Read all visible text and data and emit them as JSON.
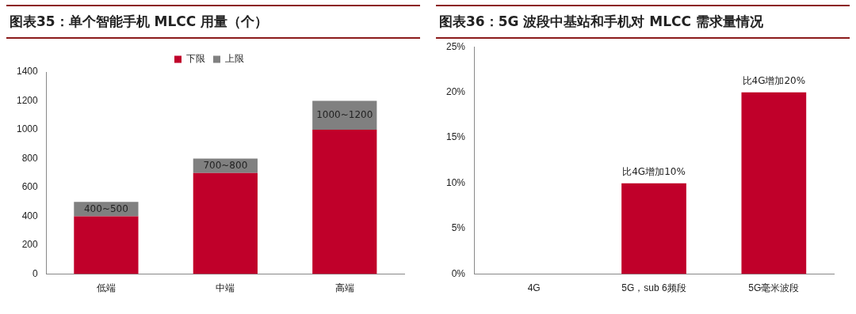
{
  "chart_data": [
    {
      "type": "bar",
      "title": "图表35：单个智能手机 MLCC 用量（个）",
      "categories": [
        "低端",
        "中端",
        "高端"
      ],
      "stacked": true,
      "series": [
        {
          "name": "下限",
          "color": "#c0002a",
          "values": [
            400,
            700,
            1000
          ]
        },
        {
          "name": "上限",
          "color": "#808080",
          "values": [
            100,
            100,
            200
          ]
        }
      ],
      "annotations": [
        "400~500",
        "700~800",
        "1000~1200"
      ],
      "ylim": [
        0,
        1400
      ],
      "yticks": [
        0,
        200,
        400,
        600,
        800,
        1000,
        1200,
        1400
      ],
      "grid": false,
      "legend": "top"
    },
    {
      "type": "bar",
      "title": "图表36：5G 波段中基站和手机对 MLCC 需求量情况",
      "categories": [
        "4G",
        "5G，sub 6频段",
        "5G毫米波段"
      ],
      "values": [
        0,
        10,
        20
      ],
      "color": "#c0002a",
      "value_labels": [
        null,
        "比4G增加10%",
        "比4G增加20%"
      ],
      "ylim": [
        0,
        25
      ],
      "yticks": [
        {
          "value": 0,
          "label": "0%"
        },
        {
          "value": 5,
          "label": "5%"
        },
        {
          "value": 10,
          "label": "10%"
        },
        {
          "value": 15,
          "label": "15%"
        },
        {
          "value": 20,
          "label": "20%"
        },
        {
          "value": 25,
          "label": "25%"
        }
      ],
      "grid": false
    }
  ]
}
